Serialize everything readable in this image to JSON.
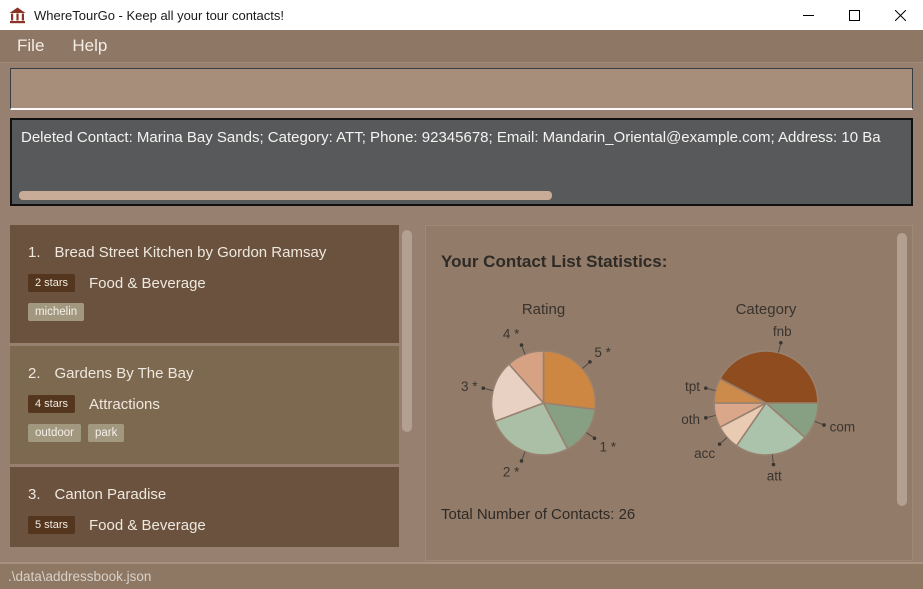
{
  "window": {
    "title": "WhereTourGo - Keep all your tour contacts!"
  },
  "menu": {
    "items": [
      {
        "label": "File"
      },
      {
        "label": "Help"
      }
    ]
  },
  "command_box": {
    "value": "",
    "placeholder": ""
  },
  "result_box": {
    "text": "Deleted Contact: Marina Bay Sands; Category: ATT; Phone: 92345678; Email: Mandarin_Oriental@example.com; Address: 10 Ba"
  },
  "contact_list": {
    "items": [
      {
        "index": "1.",
        "name": "Bread Street Kitchen by Gordon Ramsay",
        "rating": "2 stars",
        "category": "Food & Beverage",
        "tags": [
          "michelin"
        ]
      },
      {
        "index": "2.",
        "name": "Gardens By The Bay",
        "rating": "4 stars",
        "category": "Attractions",
        "tags": [
          "outdoor",
          "park"
        ]
      },
      {
        "index": "3.",
        "name": "Canton Paradise",
        "rating": "5 stars",
        "category": "Food & Beverage",
        "tags": []
      }
    ]
  },
  "stats": {
    "title": "Your Contact List Statistics:",
    "total_label": "Total Number of Contacts: 26",
    "total_contacts": 26
  },
  "chart_data": [
    {
      "type": "pie",
      "title": "Rating",
      "labels": [
        "5 *",
        "1 *",
        "2 *",
        "3 *",
        "4 *"
      ],
      "values": [
        7,
        4,
        7,
        5,
        3
      ],
      "colors": [
        "#cd8743",
        "#87a083",
        "#aabfa6",
        "#e8d0c3",
        "#d7a184"
      ],
      "start_angle_deg": 0,
      "total": 26,
      "legend": "none"
    },
    {
      "type": "pie",
      "title": "Category",
      "labels": [
        "com",
        "att",
        "acc",
        "oth",
        "tpt",
        "fnb"
      ],
      "values": [
        3,
        6,
        2,
        2,
        2,
        11
      ],
      "colors": [
        "#87a083",
        "#abc2ab",
        "#e9cab3",
        "#daa78a",
        "#cc8a4b",
        "#8f4c1e"
      ],
      "start_angle_deg": 90,
      "total": 26,
      "legend": "none"
    }
  ],
  "status_bar": {
    "path": ".\\data\\addressbook.json"
  },
  "colors": {
    "menu_bar": "#8e7765",
    "result_box_bg": "#58595a",
    "card_dark": "#6a523e",
    "card_light": "#7d6850",
    "rating_badge_bg": "#54351d",
    "tag_bg": "#a29880",
    "stats_panel_bg": "#927b69",
    "pie_stroke": "#98816f"
  }
}
